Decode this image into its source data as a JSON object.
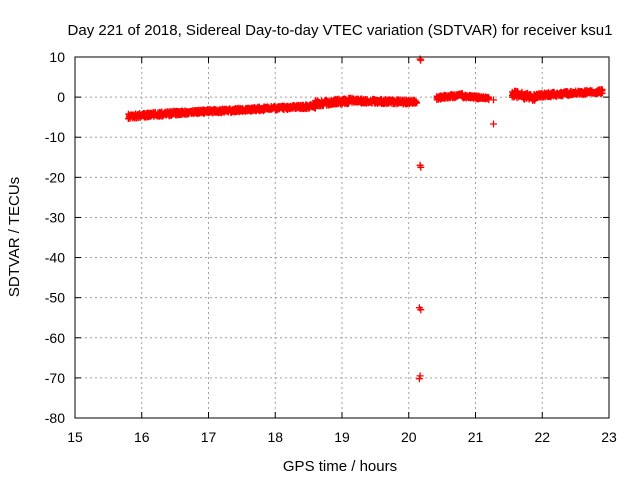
{
  "chart_data": {
    "type": "scatter",
    "title": "Day 221 of 2018, Sidereal Day-to-day VTEC variation (SDTVAR) for receiver ksu1",
    "xlabel": "GPS time / hours",
    "ylabel": "SDTVAR / TECUs",
    "xlim": [
      15,
      23
    ],
    "ylim": [
      -80,
      10
    ],
    "xticks": [
      15,
      16,
      17,
      18,
      19,
      20,
      21,
      22,
      23
    ],
    "yticks": [
      10,
      0,
      -10,
      -20,
      -30,
      -40,
      -50,
      -60,
      -70,
      -80
    ],
    "grid": true,
    "legend": "none",
    "marker": "plus",
    "color": "#ff0000",
    "bands": [
      {
        "x_start": 15.8,
        "x_end": 16.6,
        "y_start": -4.8,
        "y_end": -3.9,
        "y_spread": 1.2
      },
      {
        "x_start": 16.6,
        "x_end": 18.6,
        "y_start": -3.9,
        "y_end": -2.3,
        "y_spread": 1.1
      },
      {
        "x_start": 18.6,
        "x_end": 19.15,
        "y_start": -1.6,
        "y_end": -0.9,
        "y_spread": 1.5
      },
      {
        "x_start": 19.15,
        "x_end": 20.12,
        "y_start": -0.9,
        "y_end": -1.3,
        "y_spread": 1.2
      },
      {
        "x_start": 20.42,
        "x_end": 20.8,
        "y_start": -0.2,
        "y_end": 0.5,
        "y_spread": 1.0
      },
      {
        "x_start": 20.8,
        "x_end": 21.2,
        "y_start": 0.2,
        "y_end": -0.3,
        "y_spread": 0.9
      },
      {
        "x_start": 21.55,
        "x_end": 21.9,
        "y_start": 0.8,
        "y_end": -0.2,
        "y_spread": 1.8
      },
      {
        "x_start": 21.9,
        "x_end": 22.9,
        "y_start": 0.4,
        "y_end": 1.4,
        "y_spread": 1.2
      }
    ],
    "points": [
      {
        "x": 20.17,
        "y": 9.5
      },
      {
        "x": 20.18,
        "y": 9.2
      },
      {
        "x": 20.17,
        "y": -17.0
      },
      {
        "x": 20.18,
        "y": -17.5
      },
      {
        "x": 20.16,
        "y": -52.5
      },
      {
        "x": 20.18,
        "y": -53.0
      },
      {
        "x": 20.17,
        "y": -69.5
      },
      {
        "x": 20.16,
        "y": -70.2
      },
      {
        "x": 21.27,
        "y": -0.7
      },
      {
        "x": 21.27,
        "y": -6.7
      }
    ]
  }
}
